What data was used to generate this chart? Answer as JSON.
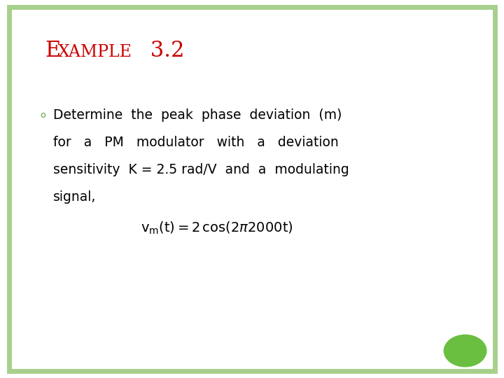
{
  "title_color": "#cc0000",
  "bullet_color": "#5a9e3a",
  "body_line1": "Determine  the  peak  phase  deviation  (m)",
  "body_line2": "for   a   PM   modulator   with   a   deviation",
  "body_line3": "sensitivity  K = 2.5 rad/V  and  a  modulating",
  "body_line4": "signal,",
  "background_color": "#ffffff",
  "border_color": "#a8d08d",
  "border_linewidth": 5,
  "green_dot_color": "#6abf40",
  "title_fontsize": 22,
  "title_small_fontsize": 17,
  "body_fontsize": 13.5,
  "formula_fontsize": 14
}
